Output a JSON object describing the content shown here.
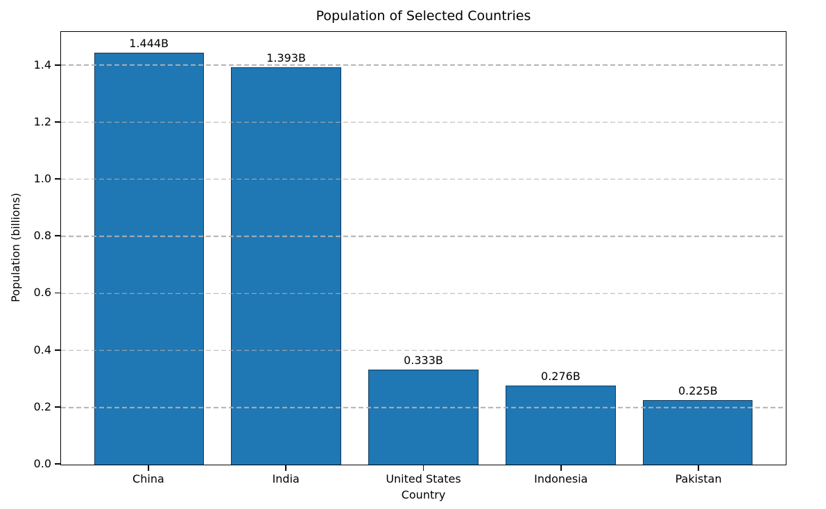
{
  "chart_data": {
    "type": "bar",
    "title": "Population of Selected Countries",
    "xlabel": "Country",
    "ylabel": "Population (billions)",
    "categories": [
      "China",
      "India",
      "United States",
      "Indonesia",
      "Pakistan"
    ],
    "values": [
      1.444,
      1.393,
      0.333,
      0.276,
      0.225
    ],
    "bar_value_labels": [
      "1.444B",
      "1.393B",
      "0.333B",
      "0.276B",
      "0.225B"
    ],
    "ytick_labels": [
      "0.0",
      "0.2",
      "0.4",
      "0.6",
      "0.8",
      "1.0",
      "1.2",
      "1.4"
    ],
    "ylim": [
      0,
      1.516
    ],
    "bar_width_fraction": 0.8,
    "bar_color": "#1f77b4",
    "bar_edge_color": "#103a5c",
    "grid": {
      "axis": "y",
      "style": "dashed",
      "color": "#b0b0b0",
      "above_bars": true
    },
    "legend_position": "none",
    "background_color": "#ffffff",
    "spine_color": "#000000",
    "text_color": "#000000"
  }
}
